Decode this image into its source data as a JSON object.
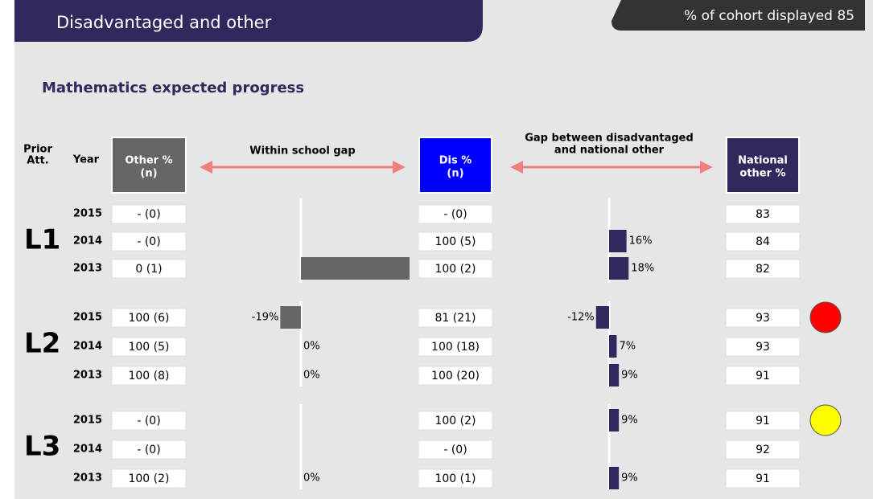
{
  "header": {
    "title": "Disadvantaged and other",
    "cohort": "% of cohort displayed 85"
  },
  "section_title": "Mathematics expected progress",
  "columns": {
    "prior_att": [
      "Prior",
      "Att."
    ],
    "year": "Year",
    "other": [
      "Other %",
      "(n)"
    ],
    "within_gap": "Within school gap",
    "dis": [
      "Dis %",
      "(n)"
    ],
    "national_gap": [
      "Gap between disadvantaged",
      "and national other"
    ],
    "national": [
      "National",
      "other %"
    ]
  },
  "groups": [
    {
      "label": "L1",
      "status_color": null,
      "years": [
        "2015",
        "2014",
        "2013"
      ],
      "other": [
        "- (0)",
        "- (0)",
        "0 (1)"
      ],
      "dis": [
        "- (0)",
        "100 (5)",
        "100 (2)"
      ],
      "national": [
        "83",
        "84",
        "82"
      ],
      "within_gap": {
        "values": [
          null,
          null,
          100
        ],
        "value_labels": [
          null,
          null,
          null
        ]
      },
      "national_gap": {
        "values": [
          null,
          16,
          18
        ],
        "value_labels": [
          null,
          "16%",
          "18%"
        ]
      }
    },
    {
      "label": "L2",
      "status_color": "#ff0000",
      "years": [
        "2015",
        "2014",
        "2013"
      ],
      "other": [
        "100 (6)",
        "100 (5)",
        "100 (8)"
      ],
      "dis": [
        "81 (21)",
        "100 (18)",
        "100 (20)"
      ],
      "national": [
        "93",
        "93",
        "91"
      ],
      "within_gap": {
        "values": [
          -19,
          0,
          0
        ],
        "value_labels": [
          "-19%",
          "0%",
          "0%"
        ]
      },
      "national_gap": {
        "values": [
          -12,
          7,
          9
        ],
        "value_labels": [
          "-12%",
          "7%",
          "9%"
        ]
      }
    },
    {
      "label": "L3",
      "status_color": "#ffff00",
      "years": [
        "2015",
        "2014",
        "2013"
      ],
      "other": [
        "- (0)",
        "- (0)",
        "100 (2)"
      ],
      "dis": [
        "100 (2)",
        "- (0)",
        "100 (1)"
      ],
      "national": [
        "91",
        "92",
        "91"
      ],
      "within_gap": {
        "values": [
          null,
          null,
          0
        ],
        "value_labels": [
          null,
          null,
          "0%"
        ]
      },
      "national_gap": {
        "values": [
          9,
          null,
          9
        ],
        "value_labels": [
          "9%",
          null,
          "9%"
        ]
      }
    }
  ]
}
